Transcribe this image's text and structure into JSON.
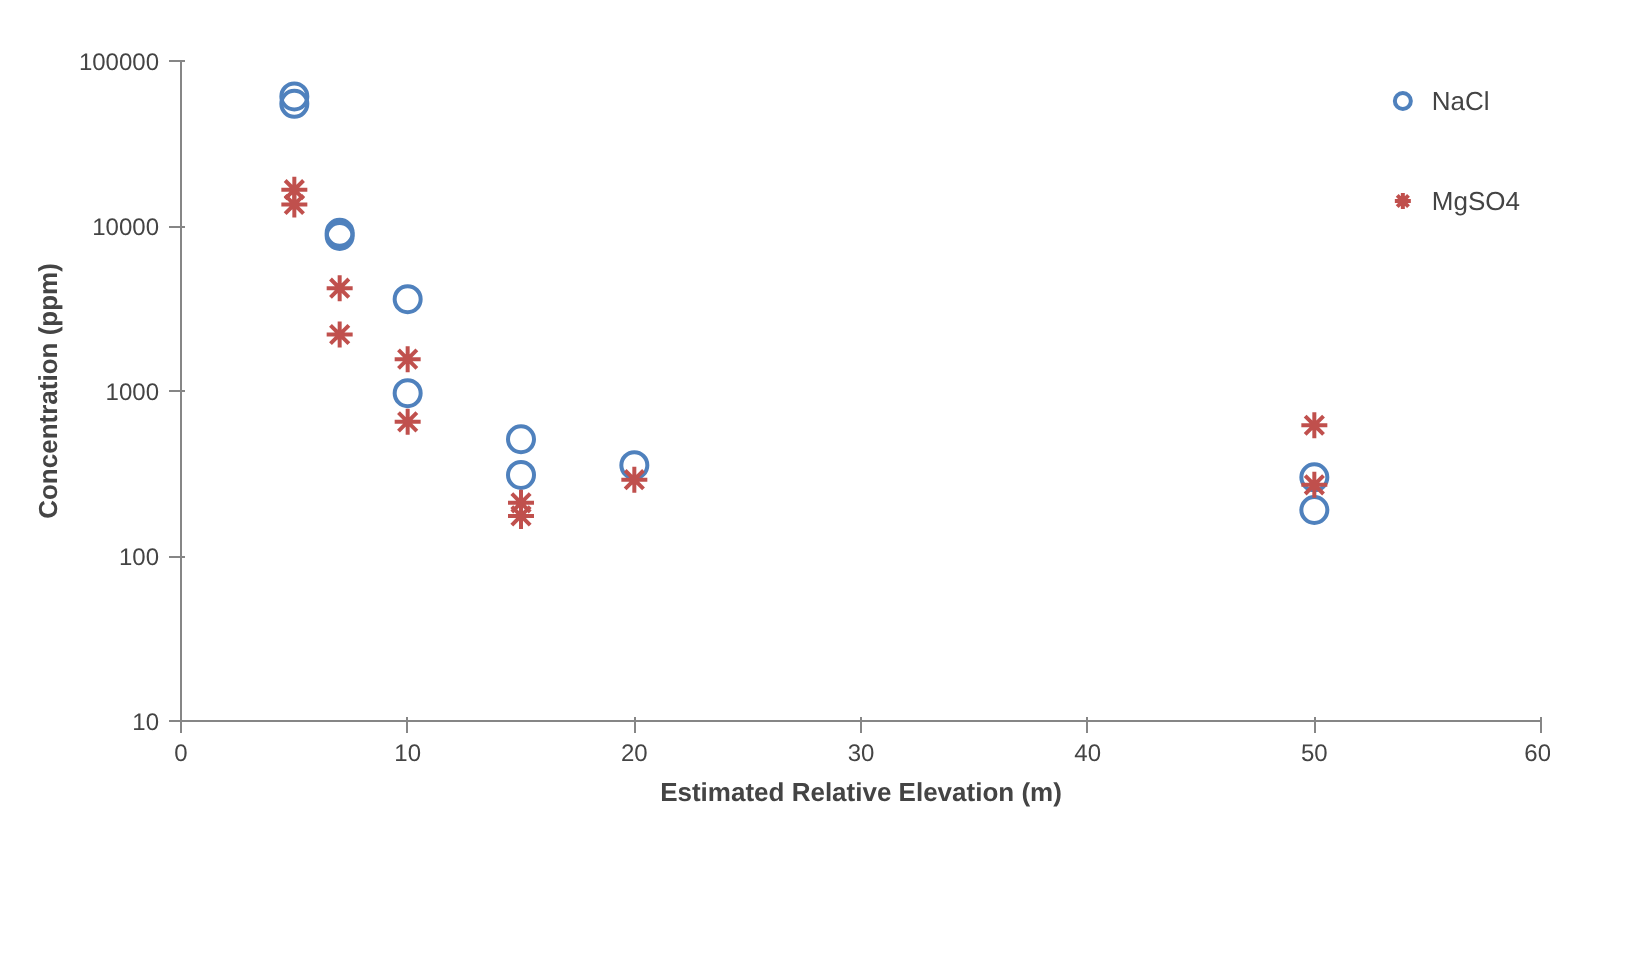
{
  "chart_data": {
    "type": "scatter",
    "xlabel": "Estimated Relative Elevation (m)",
    "ylabel": "Concentration (ppm)",
    "log": "y",
    "xlim": [
      0,
      60
    ],
    "xticks": [
      0,
      10,
      20,
      30,
      40,
      50,
      60
    ],
    "ylim": [
      10,
      100000
    ],
    "yticks": [
      10,
      100,
      1000,
      10000,
      100000
    ],
    "grid": false,
    "legend": "top right",
    "series": [
      {
        "name": "NaCl",
        "color": "#4f81bd",
        "marker": "circle",
        "x": [
          5,
          5,
          7,
          7,
          10,
          10,
          15,
          15,
          20,
          50,
          50
        ],
        "values": [
          61000,
          55000,
          9100,
          8700,
          3600,
          970,
          510,
          310,
          355,
          300,
          190
        ]
      },
      {
        "name": "MgSO4",
        "color": "#c0504d",
        "marker": "cross",
        "x": [
          5,
          5,
          7,
          7,
          10,
          10,
          15,
          15,
          20,
          50,
          50
        ],
        "values": [
          16600,
          13500,
          4200,
          2200,
          1560,
          650,
          210,
          175,
          290,
          620,
          270
        ]
      }
    ]
  }
}
